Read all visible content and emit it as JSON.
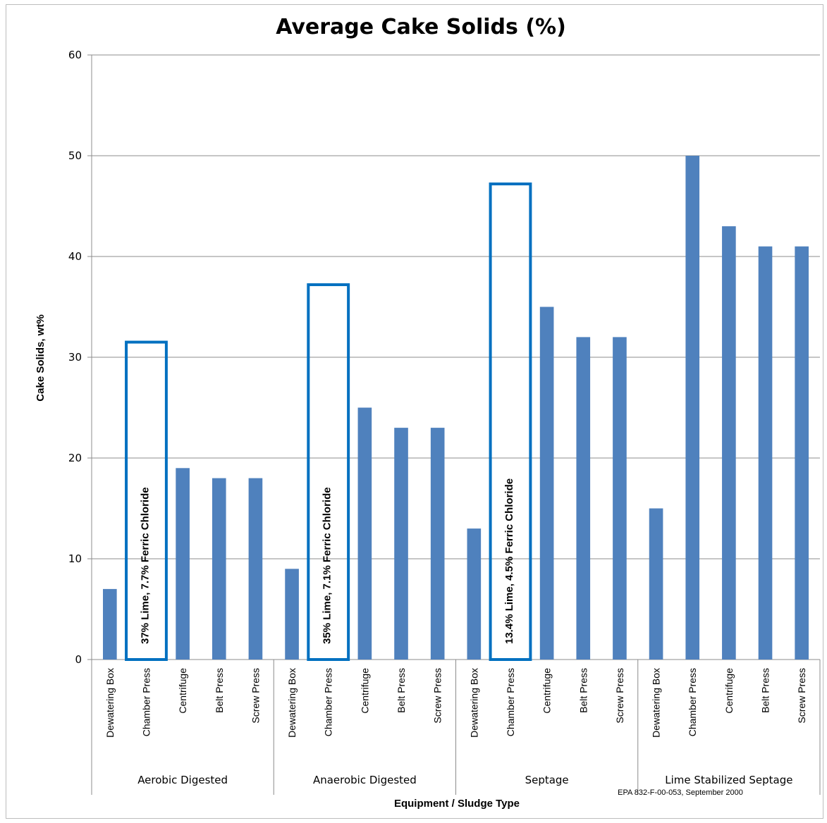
{
  "chart_data": {
    "type": "bar",
    "title": "Average Cake Solids (%)",
    "xlabel": "Equipment / Sludge Type",
    "ylabel": "Cake Solids, wt%",
    "ylim": [
      0,
      60
    ],
    "yticks": [
      0,
      10,
      20,
      30,
      40,
      50,
      60
    ],
    "grid": true,
    "bar_color": "#4F81BD",
    "annotation_color": "#0070C0",
    "groups": [
      {
        "name": "Aerobic Digested",
        "categories": [
          "Dewatering Box",
          "Chamber Press",
          "Centrifuge",
          "Belt Press",
          "Screw Press"
        ],
        "values": [
          7,
          null,
          19,
          18,
          18
        ]
      },
      {
        "name": "Anaerobic Digested",
        "categories": [
          "Dewatering Box",
          "Chamber Press",
          "Centrifuge",
          "Belt Press",
          "Screw Press"
        ],
        "values": [
          9,
          null,
          25,
          23,
          23
        ]
      },
      {
        "name": "Septage",
        "categories": [
          "Dewatering Box",
          "Chamber Press",
          "Centrifuge",
          "Belt Press",
          "Screw Press"
        ],
        "values": [
          13,
          null,
          35,
          32,
          32
        ]
      },
      {
        "name": "Lime Stabilized Septage",
        "categories": [
          "Dewatering Box",
          "Chamber Press",
          "Centrifuge",
          "Belt Press",
          "Screw Press"
        ],
        "values": [
          15,
          50,
          43,
          41,
          41
        ]
      }
    ],
    "annotations": [
      {
        "group": 0,
        "category": 1,
        "text": "37% Lime, 7.7% Ferric Chloride",
        "box_top": 31.5
      },
      {
        "group": 1,
        "category": 1,
        "text": "35% Lime, 7.1% Ferric Chloride",
        "box_top": 37.2
      },
      {
        "group": 2,
        "category": 1,
        "text": "13.4% Lime, 4.5% Ferric Chloride",
        "box_top": 47.2
      }
    ],
    "source_note": "EPA 832-F-00-053, September 2000"
  }
}
